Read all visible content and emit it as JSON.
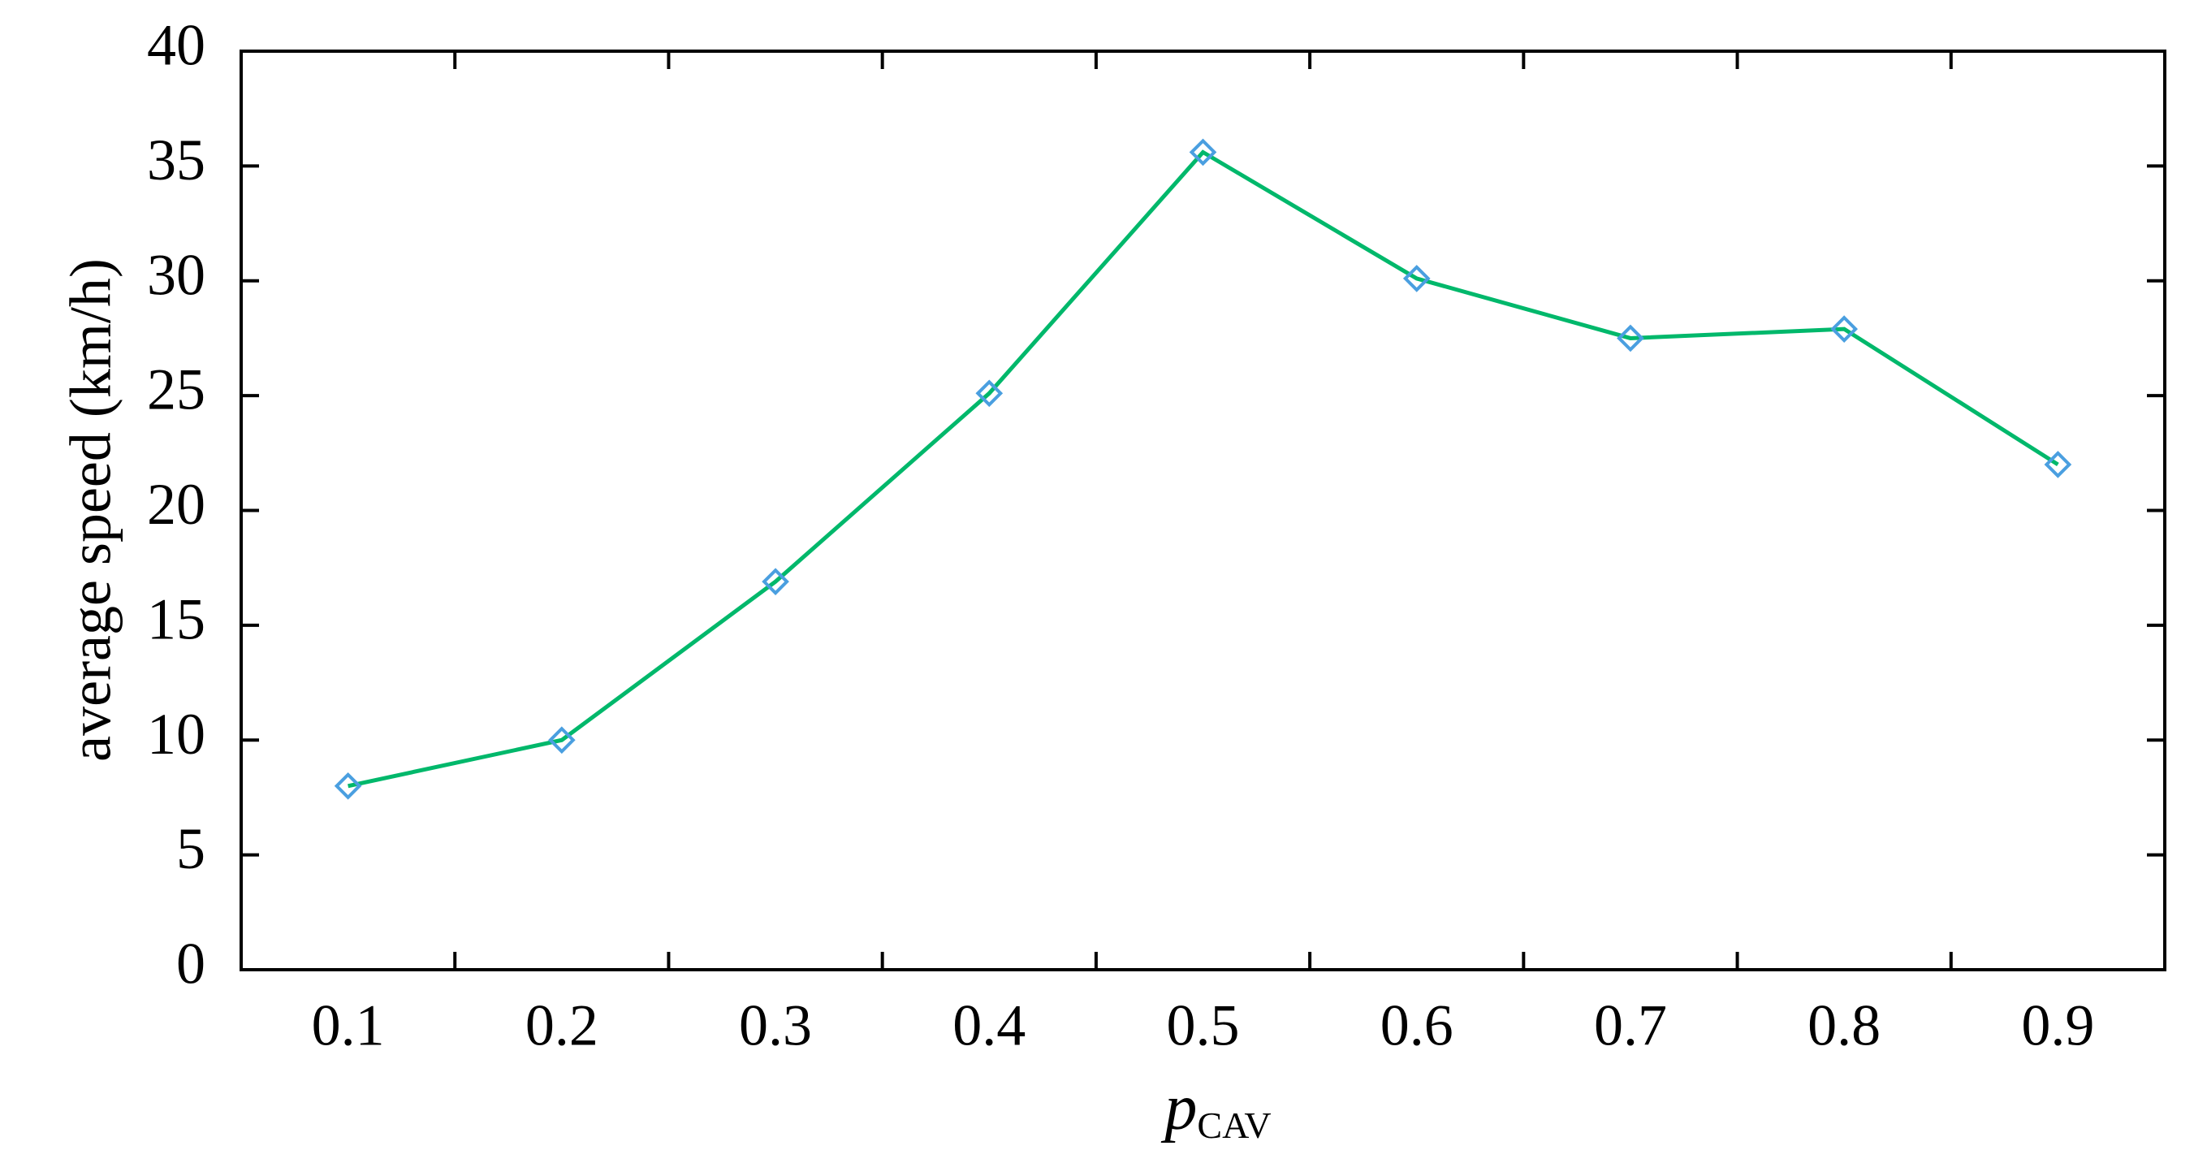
{
  "chart_data": {
    "type": "line",
    "categories": [
      "0.1",
      "0.2",
      "0.3",
      "0.4",
      "0.5",
      "0.6",
      "0.7",
      "0.8",
      "0.9"
    ],
    "series": [
      {
        "name": "average speed",
        "color": "#00b86b",
        "marker_color": "#4a9fe0",
        "values": [
          8.0,
          10.0,
          16.9,
          25.1,
          35.6,
          30.1,
          27.5,
          27.9,
          22.0
        ]
      }
    ],
    "ylabel": "average speed (km/h)",
    "xlabel": "p",
    "xlabel_sub": "CAV",
    "ylim": [
      0,
      40
    ],
    "yticks": [
      0,
      5,
      10,
      15,
      20,
      25,
      30,
      35,
      40
    ],
    "grid": false
  }
}
